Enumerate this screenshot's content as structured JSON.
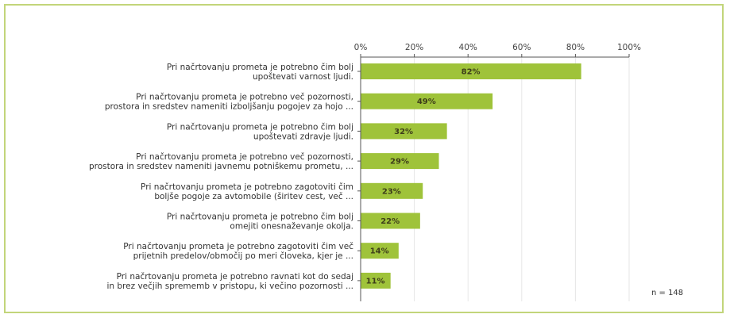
{
  "colors": {
    "frame_border": "#c2d57a",
    "bar_fill": "#9fc33a",
    "gridline": "#e6e6e6",
    "axis": "#555555"
  },
  "chart_data": {
    "type": "bar",
    "orientation": "horizontal",
    "categories": [
      [
        "Pri načrtovanju prometa je potrebno čim bolj",
        "upoštevati varnost ljudi."
      ],
      [
        "Pri načrtovanju prometa je potrebno več pozornosti,",
        "prostora in sredstev nameniti izboljšanju pogojev za hojo ..."
      ],
      [
        "Pri načrtovanju prometa je potrebno čim bolj",
        "upoštevati zdravje ljudi."
      ],
      [
        "Pri načrtovanju prometa je potrebno več pozornosti,",
        "prostora in sredstev nameniti javnemu potniškemu prometu, ..."
      ],
      [
        "Pri načrtovanju prometa je potrebno zagotoviti čim",
        "boljše pogoje za avtomobile (širitev cest, več ..."
      ],
      [
        "Pri načrtovanju prometa je potrebno čim bolj",
        "omejiti onesnaževanje okolja."
      ],
      [
        "Pri načrtovanju prometa je potrebno zagotoviti čim več",
        "prijetnih predelov/območij po meri človeka, kjer je ..."
      ],
      [
        "Pri načrtovanju prometa je potrebno ravnati kot do sedaj",
        "in brez večjih sprememb v pristopu, ki večino pozornosti ..."
      ]
    ],
    "values": [
      82,
      49,
      32,
      29,
      23,
      22,
      14,
      11
    ],
    "data_labels": [
      "82%",
      "49%",
      "32%",
      "29%",
      "23%",
      "22%",
      "14%",
      "11%"
    ],
    "x_ticks": [
      0,
      20,
      40,
      60,
      80,
      100
    ],
    "x_tick_labels": [
      "0%",
      "20%",
      "40%",
      "60%",
      "80%",
      "100%"
    ],
    "xlim": [
      0,
      100
    ],
    "axis_position": "top",
    "grid": true,
    "note": "n = 148"
  }
}
